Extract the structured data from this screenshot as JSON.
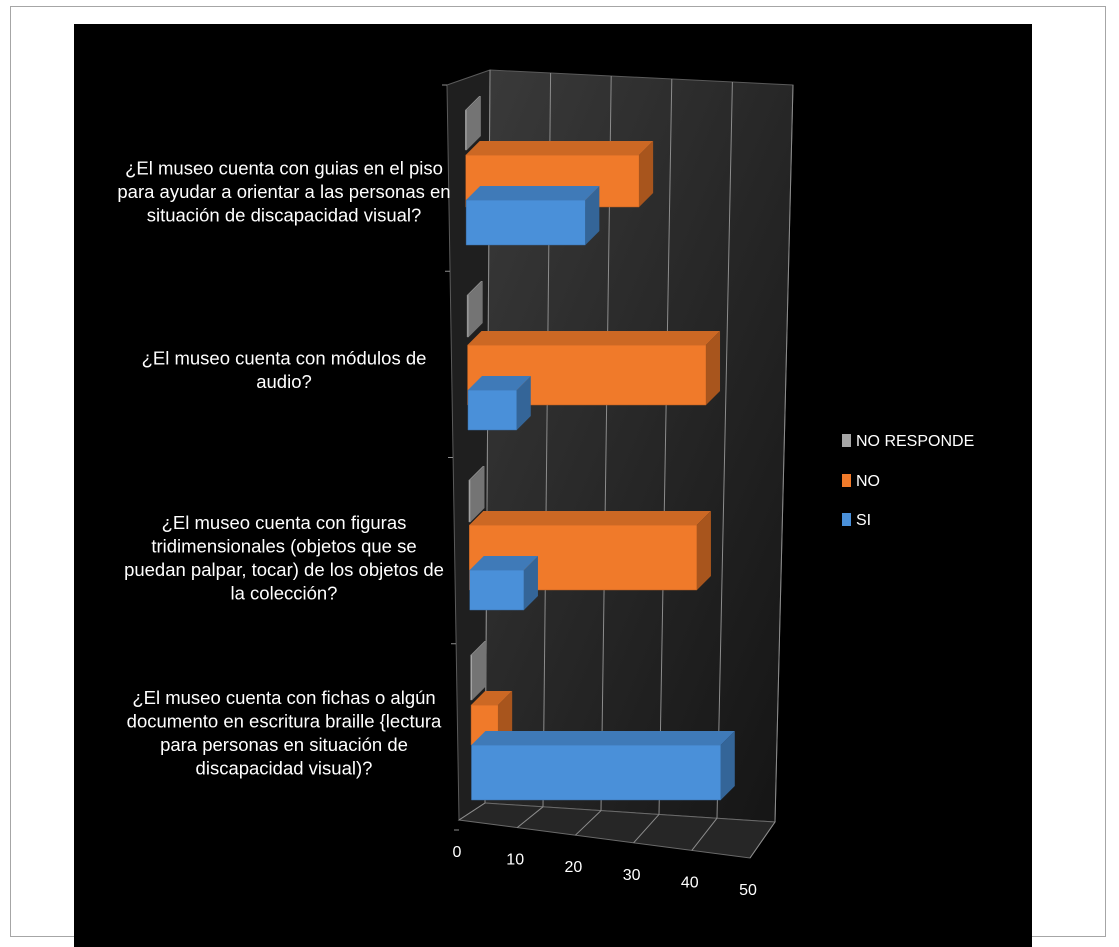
{
  "chart_data": {
    "type": "bar",
    "orientation": "horizontal",
    "style": "3d",
    "categories": [
      "¿El museo cuenta con guias en el piso para ayudar a orientar a las personas en situación de discapacidad visual?",
      "¿El museo cuenta con módulos de audio?",
      "¿El museo cuenta con figuras tridimensionales (objetos que se puedan palpar, tocar) de los objetos de la colección?",
      "¿El museo cuenta con fichas o algún documento en escritura braille {lectura para personas en situación de discapacidad visual)?"
    ],
    "category_lines": [
      [
        "¿El museo cuenta con guias en el piso",
        "para ayudar a orientar a las personas en",
        "situación de discapacidad visual?"
      ],
      [
        "¿El museo cuenta con módulos de",
        "audio?"
      ],
      [
        "¿El museo cuenta con figuras",
        "tridimensionales (objetos que se",
        "puedan palpar, tocar) de los objetos de",
        "la colección?"
      ],
      [
        "¿El museo cuenta con fichas o algún",
        "documento en escritura braille {lectura",
        "para personas en situación de",
        "discapacidad visual)?"
      ]
    ],
    "series": [
      {
        "name": "SI",
        "color": "#4a90d9",
        "values": [
          22,
          9,
          10,
          46
        ]
      },
      {
        "name": "NO",
        "color": "#f07a2a",
        "values": [
          32,
          44,
          42,
          5
        ]
      },
      {
        "name": "NO RESPONDE",
        "color": "#a6a6a6",
        "values": [
          0.3,
          0.3,
          0.3,
          0.3
        ]
      }
    ],
    "legend_order": [
      "NO RESPONDE",
      "NO",
      "SI"
    ],
    "legend_position": "right",
    "xlim": [
      0,
      50
    ],
    "x_ticks": [
      "0",
      "10",
      "20",
      "30",
      "40",
      "50"
    ],
    "grid": true,
    "background": "#000000",
    "text_color": "#ffffff"
  }
}
